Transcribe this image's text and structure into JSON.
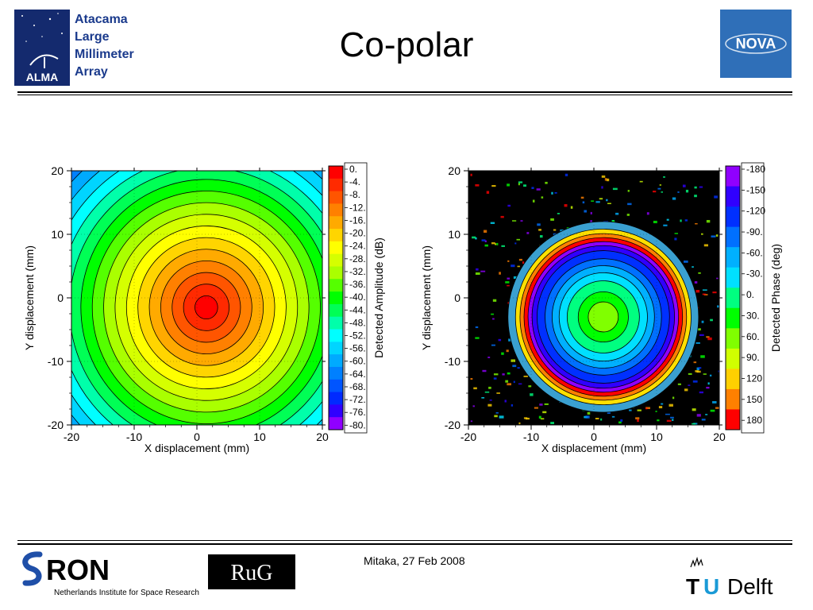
{
  "header": {
    "title": "Co-polar",
    "alma_logo_text": "ALMA",
    "alma_lines": [
      "Atacama",
      "Large",
      "Millimeter",
      "Array"
    ],
    "nova_logo_text": "NOVA"
  },
  "footer": {
    "date": "Mitaka, 27 Feb 2008",
    "sron_name": "RON",
    "sron_subtitle": "Netherlands Institute for Space Research",
    "rug_text": "RuG",
    "tud_t": "T",
    "tud_u": "U",
    "tud_delft": "Delft"
  },
  "chart_data": [
    {
      "type": "heatmap",
      "title": "",
      "xlabel": "X displacement (mm)",
      "ylabel": "Y displacement (mm)",
      "xlim": [
        -20,
        20
      ],
      "ylim": [
        -20,
        20
      ],
      "x_ticks": [
        "-20",
        "-10",
        "0",
        "10",
        "20"
      ],
      "y_ticks": [
        "20",
        "10",
        "0",
        "-10",
        "-20"
      ],
      "colorbar_label": "Detected Amplitude (dB)",
      "colorbar_ticks": [
        "0.",
        "-4.",
        "-8.",
        "-12.",
        "-16.",
        "-20.",
        "-24.",
        "-28.",
        "-32.",
        "-36.",
        "-40.",
        "-44.",
        "-48.",
        "-52.",
        "-56.",
        "-60.",
        "-64.",
        "-68.",
        "-72.",
        "-76.",
        "-80."
      ],
      "colorbar_colors": [
        "#ff0000",
        "#ff2a00",
        "#ff5500",
        "#ff8000",
        "#ffaa00",
        "#ffd500",
        "#ffff00",
        "#d5ff00",
        "#aaff00",
        "#55ff00",
        "#00ff00",
        "#00ff55",
        "#00ffaa",
        "#00ffff",
        "#00d5ff",
        "#00aaff",
        "#0080ff",
        "#0055ff",
        "#002aff",
        "#3000ff",
        "#9000ff"
      ],
      "beam_center": [
        1.5,
        -1.5
      ],
      "dB_per_mm": 2.2,
      "background_color": "#0a1a6e"
    },
    {
      "type": "heatmap",
      "title": "",
      "xlabel": "X displacement (mm)",
      "ylabel": "Y displacement (mm)",
      "xlim": [
        -20,
        20
      ],
      "ylim": [
        -20,
        20
      ],
      "x_ticks": [
        "-20",
        "-10",
        "0",
        "10",
        "20"
      ],
      "y_ticks": [
        "20",
        "10",
        "0",
        "-10",
        "-20"
      ],
      "colorbar_label": "Detected Phase (deg)",
      "colorbar_ticks": [
        "-180",
        "-150",
        "-120",
        "-90.",
        "-60.",
        "-30.",
        "0.",
        "30.",
        "60.",
        "90.",
        "120",
        "150",
        "180"
      ],
      "colorbar_colors": [
        "#9000ff",
        "#3000ff",
        "#0030ff",
        "#0070ff",
        "#00b0ff",
        "#00e0ff",
        "#00ff80",
        "#00ff00",
        "#80ff00",
        "#d0ff00",
        "#ffd000",
        "#ff8000",
        "#ff0000"
      ],
      "beam_center": [
        1.5,
        -3.0
      ],
      "background_color": "#000000"
    }
  ]
}
